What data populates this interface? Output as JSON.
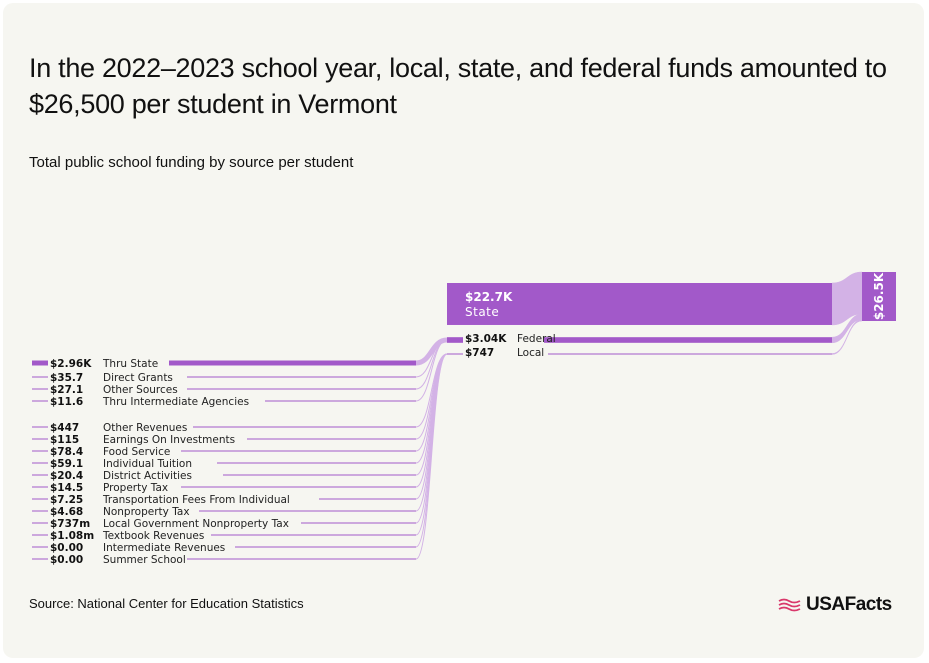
{
  "header": {
    "title": "In the 2022–2023 school year, local, state, and federal funds amounted to $26,500 per student in Vermont",
    "subtitle": "Total public school funding by source per student"
  },
  "footer": {
    "source": "Source: National Center for Education Statistics",
    "logo_text": "USAFacts"
  },
  "colors": {
    "flow": "#a259c9",
    "flow_light": "#d3b2e6",
    "text": "#111111"
  },
  "chart_data": {
    "type": "sankey",
    "title": "In the 2022–2023 school year, local, state, and federal funds amounted to $26,500 per student in Vermont",
    "subtitle": "Total public school funding by source per student",
    "total": {
      "label": "$26.5K",
      "value": 26500
    },
    "level1": [
      {
        "name": "State",
        "label": "$22.7K",
        "value": 22700
      },
      {
        "name": "Federal",
        "label": "$3.04K",
        "value": 3040
      },
      {
        "name": "Local",
        "label": "$747",
        "value": 747
      }
    ],
    "federal_sources": [
      {
        "name": "Thru State",
        "label": "$2.96K",
        "value": 2960
      },
      {
        "name": "Direct Grants",
        "label": "$35.7",
        "value": 35.7
      },
      {
        "name": "Other Sources",
        "label": "$27.1",
        "value": 27.1
      },
      {
        "name": "Thru Intermediate Agencies",
        "label": "$11.6",
        "value": 11.6
      }
    ],
    "local_sources": [
      {
        "name": "Other Revenues",
        "label": "$447",
        "value": 447
      },
      {
        "name": "Earnings On Investments",
        "label": "$115",
        "value": 115
      },
      {
        "name": "Food Service",
        "label": "$78.4",
        "value": 78.4
      },
      {
        "name": "Individual Tuition",
        "label": "$59.1",
        "value": 59.1
      },
      {
        "name": "District Activities",
        "label": "$20.4",
        "value": 20.4
      },
      {
        "name": "Property Tax",
        "label": "$14.5",
        "value": 14.5
      },
      {
        "name": "Transportation Fees From Individual",
        "label": "$7.25",
        "value": 7.25
      },
      {
        "name": "Nonproperty Tax",
        "label": "$4.68",
        "value": 4.68
      },
      {
        "name": "Local Government Nonproperty Tax",
        "label": "$737m",
        "value": 0.737
      },
      {
        "name": "Textbook Revenues",
        "label": "$1.08m",
        "value": 0.00108
      },
      {
        "name": "Intermediate Revenues",
        "label": "$0.00",
        "value": 0
      },
      {
        "name": "Summer School",
        "label": "$0.00",
        "value": 0
      }
    ]
  }
}
